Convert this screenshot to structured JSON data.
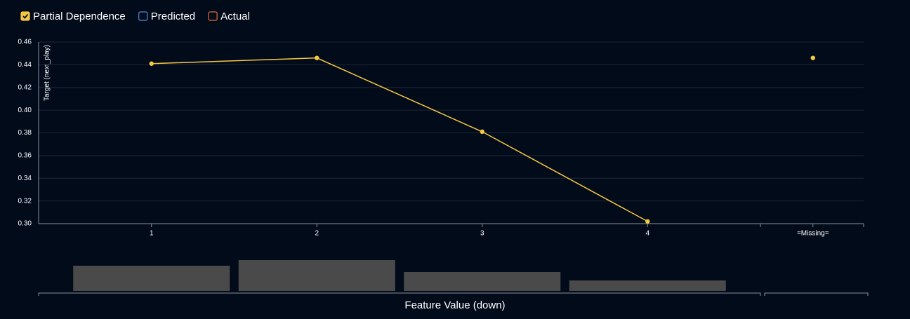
{
  "chart_data": {
    "type": "line",
    "legend": [
      {
        "name": "Partial Dependence",
        "color": "#f5c842",
        "checked": true
      },
      {
        "name": "Predicted",
        "color": "#4a90d9",
        "checked": false
      },
      {
        "name": "Actual",
        "color": "#e0703a",
        "checked": false
      }
    ],
    "ylabel": "Target (next_play)",
    "xlabel": "Feature Value (down)",
    "categories": [
      "1",
      "2",
      "3",
      "4",
      "=Missing="
    ],
    "series": [
      {
        "name": "Partial Dependence",
        "color": "#f5c842",
        "values": [
          0.441,
          0.446,
          0.381,
          0.302,
          0.446
        ]
      }
    ],
    "ylim": [
      0.3,
      0.46
    ],
    "yticks": [
      {
        "value": 0.3,
        "label": "0.30"
      },
      {
        "value": 0.32,
        "label": "0.32"
      },
      {
        "value": 0.34,
        "label": "0.34"
      },
      {
        "value": 0.36,
        "label": "0.36"
      },
      {
        "value": 0.38,
        "label": "0.38"
      },
      {
        "value": 0.4,
        "label": "0.40"
      },
      {
        "value": 0.42,
        "label": "0.42"
      },
      {
        "value": 0.44,
        "label": "0.44"
      },
      {
        "value": 0.46,
        "label": "0.46"
      }
    ],
    "grid": true,
    "histogram": {
      "color": "#4a4a4a",
      "values": [
        36,
        44,
        27,
        15,
        0
      ]
    }
  }
}
